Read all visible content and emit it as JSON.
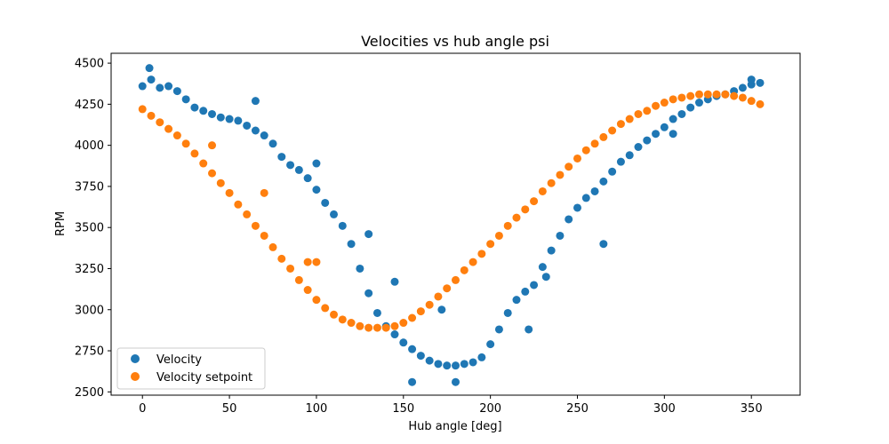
{
  "chart_data": {
    "type": "scatter",
    "title": "Velocities vs hub angle psi",
    "xlabel": "Hub angle [deg]",
    "ylabel": "RPM",
    "xlim": [
      -18,
      378
    ],
    "ylim": [
      2480,
      4560
    ],
    "xticks": [
      0,
      50,
      100,
      150,
      200,
      250,
      300,
      350
    ],
    "yticks": [
      2500,
      2750,
      3000,
      3250,
      3500,
      3750,
      4000,
      4250,
      4500
    ],
    "grid": false,
    "legend_position": "lower-left",
    "series": [
      {
        "name": "Velocity",
        "color": "#1f77b4",
        "x": [
          0,
          5,
          10,
          15,
          20,
          25,
          30,
          35,
          40,
          45,
          50,
          55,
          60,
          65,
          70,
          75,
          80,
          85,
          90,
          95,
          100,
          105,
          110,
          115,
          120,
          125,
          130,
          135,
          140,
          145,
          150,
          155,
          160,
          165,
          170,
          175,
          180,
          185,
          190,
          195,
          200,
          205,
          210,
          215,
          220,
          225,
          230,
          235,
          240,
          245,
          250,
          255,
          260,
          265,
          270,
          275,
          280,
          285,
          290,
          295,
          300,
          305,
          310,
          315,
          320,
          325,
          330,
          335,
          340,
          345,
          350,
          355,
          4,
          65,
          100,
          130,
          145,
          155,
          172,
          180,
          222,
          232,
          265,
          305,
          350
        ],
        "y": [
          4360,
          4400,
          4350,
          4360,
          4330,
          4280,
          4230,
          4210,
          4190,
          4170,
          4160,
          4150,
          4120,
          4090,
          4060,
          4010,
          3930,
          3880,
          3850,
          3800,
          3730,
          3650,
          3580,
          3510,
          3400,
          3250,
          3100,
          2980,
          2900,
          2850,
          2800,
          2760,
          2720,
          2690,
          2670,
          2660,
          2660,
          2670,
          2680,
          2710,
          2790,
          2880,
          2980,
          3060,
          3110,
          3150,
          3260,
          3360,
          3450,
          3550,
          3620,
          3680,
          3720,
          3780,
          3840,
          3900,
          3940,
          3990,
          4030,
          4070,
          4110,
          4160,
          4190,
          4230,
          4260,
          4280,
          4300,
          4310,
          4330,
          4350,
          4370,
          4380,
          4470,
          4270,
          3890,
          3460,
          3170,
          2560,
          3000,
          2560,
          2880,
          3200,
          3400,
          4070,
          4400
        ]
      },
      {
        "name": "Velocity setpoint",
        "color": "#ff7f0e",
        "x": [
          0,
          5,
          10,
          15,
          20,
          25,
          30,
          35,
          40,
          45,
          50,
          55,
          60,
          65,
          70,
          75,
          80,
          85,
          90,
          95,
          100,
          105,
          110,
          115,
          120,
          125,
          130,
          135,
          140,
          145,
          150,
          155,
          160,
          165,
          170,
          175,
          180,
          185,
          190,
          195,
          200,
          205,
          210,
          215,
          220,
          225,
          230,
          235,
          240,
          245,
          250,
          255,
          260,
          265,
          270,
          275,
          280,
          285,
          290,
          295,
          300,
          305,
          310,
          315,
          320,
          325,
          330,
          335,
          340,
          345,
          350,
          355,
          40,
          70,
          95,
          100
        ],
        "y": [
          4220,
          4180,
          4140,
          4100,
          4060,
          4010,
          3950,
          3890,
          3830,
          3770,
          3710,
          3640,
          3580,
          3510,
          3450,
          3380,
          3310,
          3250,
          3180,
          3120,
          3060,
          3010,
          2970,
          2940,
          2920,
          2900,
          2890,
          2890,
          2890,
          2900,
          2920,
          2950,
          2990,
          3030,
          3080,
          3130,
          3180,
          3240,
          3290,
          3340,
          3400,
          3450,
          3510,
          3560,
          3610,
          3660,
          3720,
          3770,
          3820,
          3870,
          3920,
          3970,
          4010,
          4050,
          4090,
          4130,
          4160,
          4190,
          4210,
          4240,
          4260,
          4280,
          4290,
          4300,
          4310,
          4310,
          4310,
          4310,
          4300,
          4290,
          4270,
          4250,
          4000,
          3710,
          3290,
          3290
        ]
      }
    ]
  }
}
